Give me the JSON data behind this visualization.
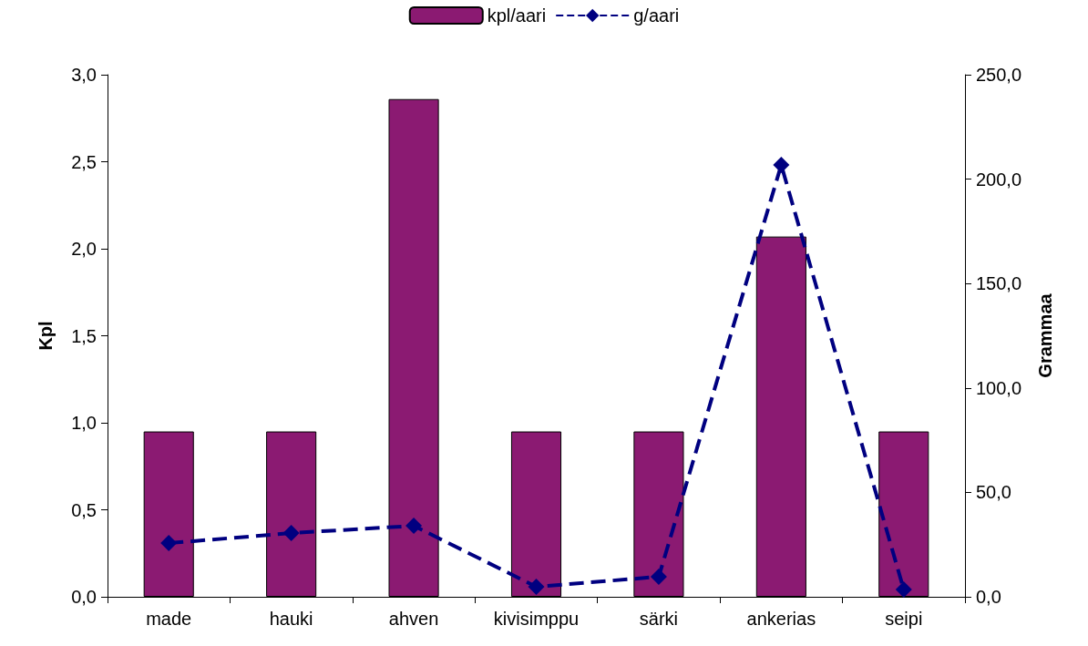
{
  "chart_data": {
    "type": "bar",
    "ylabel": "Kpl",
    "y2label": "Grammaa",
    "categories": [
      "made",
      "hauki",
      "ahven",
      "kivisimppu",
      "särki",
      "ankerias",
      "seipi"
    ],
    "series": [
      {
        "name": "kpl/aari",
        "color": "#8b1a72",
        "values": [
          0.95,
          0.95,
          2.86,
          0.95,
          0.95,
          2.07,
          0.95
        ]
      },
      {
        "name": "g/aari",
        "type": "line",
        "axis": "y2",
        "color": "#000080",
        "marker": "diamond",
        "line_style": "dashed",
        "values": [
          25.7,
          30.5,
          34,
          4.8,
          9.6,
          206.8,
          3.5
        ]
      }
    ],
    "ylim": [
      0,
      3
    ],
    "yticks": [
      {
        "value": 0,
        "label": "0,0"
      },
      {
        "value": 0.5,
        "label": "0,5"
      },
      {
        "value": 1,
        "label": "1,0"
      },
      {
        "value": 1.5,
        "label": "1,5"
      },
      {
        "value": 2,
        "label": "2,0"
      },
      {
        "value": 2.5,
        "label": "2,5"
      },
      {
        "value": 3,
        "label": "3,0"
      }
    ],
    "y2lim": [
      0,
      250
    ],
    "y2ticks": [
      {
        "value": 0,
        "label": "0,0"
      },
      {
        "value": 50,
        "label": "50,0"
      },
      {
        "value": 100,
        "label": "100,0"
      },
      {
        "value": 150,
        "label": "150,0"
      },
      {
        "value": 200,
        "label": "200,0"
      },
      {
        "value": 250,
        "label": "250,0"
      }
    ],
    "grid": false,
    "legend": "top"
  }
}
